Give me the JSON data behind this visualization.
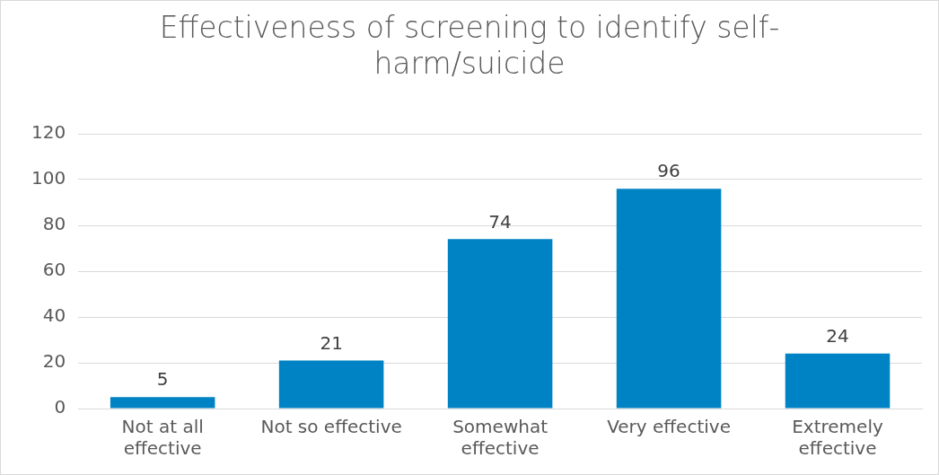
{
  "chart_data": {
    "type": "bar",
    "title": "Effectiveness of screening to identify self-harm/suicide",
    "categories": [
      "Not at all effective",
      "Not so effective",
      "Somewhat effective",
      "Very effective",
      "Extremely effective"
    ],
    "values": [
      5,
      21,
      74,
      96,
      24
    ],
    "color": "#0083c4",
    "ylim": [
      0,
      120
    ],
    "yticks": [
      0,
      20,
      40,
      60,
      80,
      100,
      120
    ],
    "grid": "y",
    "data_labels": true,
    "legend": false
  }
}
